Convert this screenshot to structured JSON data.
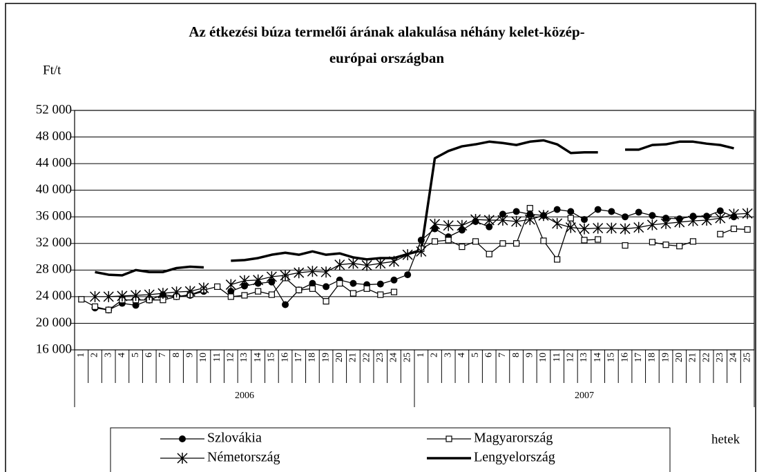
{
  "chart_data": {
    "type": "line",
    "title": [
      "Az étkezési búza termelői árának alakulása néhány kelet-közép-",
      "európai országban"
    ],
    "ylabel": "Ft/t",
    "xlabel": "hetek",
    "categories": [
      "1",
      "2",
      "3",
      "4",
      "5",
      "6",
      "7",
      "8",
      "9",
      "10",
      "11",
      "12",
      "13",
      "14",
      "15",
      "16",
      "17",
      "18",
      "19",
      "20",
      "21",
      "22",
      "23",
      "24",
      "25",
      "1",
      "2",
      "3",
      "4",
      "5",
      "6",
      "7",
      "8",
      "9",
      "10",
      "11",
      "12",
      "13",
      "14",
      "15",
      "16",
      "17",
      "18",
      "19",
      "20",
      "21",
      "22",
      "23",
      "24",
      "25"
    ],
    "groups": [
      "2006",
      "2007"
    ],
    "ylim": [
      16000,
      52000
    ],
    "yticks": [
      {
        "value": 16000,
        "label": "16 000"
      },
      {
        "value": 20000,
        "label": "20 000"
      },
      {
        "value": 24000,
        "label": "24 000"
      },
      {
        "value": 28000,
        "label": "28 000"
      },
      {
        "value": 32000,
        "label": "32 000"
      },
      {
        "value": 36000,
        "label": "36 000"
      },
      {
        "value": 40000,
        "label": "40 000"
      },
      {
        "value": 44000,
        "label": "44 000"
      },
      {
        "value": 48000,
        "label": "48 000"
      },
      {
        "value": 52000,
        "label": "52 000"
      }
    ],
    "grid": true,
    "series": [
      {
        "name": "Szlovákia",
        "color": "#000000",
        "marker": "circle",
        "line_width": 1.3,
        "values": [
          null,
          22300,
          22000,
          23000,
          22700,
          23500,
          24300,
          24000,
          24200,
          24800,
          null,
          24800,
          25600,
          26000,
          26200,
          22800,
          25000,
          26000,
          25500,
          26500,
          26000,
          25800,
          25900,
          26500,
          27300,
          32500,
          34200,
          33000,
          34000,
          35300,
          34500,
          36400,
          36800,
          36400,
          36200,
          37100,
          36800,
          35600,
          37100,
          36800,
          36000,
          36700,
          36200,
          35800,
          35700,
          36100,
          36100,
          36900,
          36000,
          null
        ]
      },
      {
        "name": "Magyarország",
        "color": "#000000",
        "marker": "square",
        "line_width": 1.3,
        "values": [
          23600,
          22500,
          22000,
          23500,
          23500,
          23500,
          23500,
          24000,
          24300,
          25000,
          25500,
          24000,
          24200,
          24800,
          24300,
          26800,
          25000,
          25200,
          23300,
          26000,
          24500,
          25200,
          24300,
          24700,
          null,
          31200,
          32300,
          32500,
          31500,
          32300,
          30400,
          32000,
          32000,
          37300,
          32400,
          29600,
          35800,
          32500,
          32600,
          null,
          31700,
          null,
          32200,
          31800,
          31600,
          32300,
          null,
          33400,
          34200,
          34100
        ]
      },
      {
        "name": "Németország",
        "color": "#000000",
        "marker": "star",
        "line_width": 1.3,
        "values": [
          null,
          24000,
          24000,
          24100,
          24200,
          24300,
          24500,
          24700,
          24800,
          25300,
          null,
          25800,
          26400,
          26500,
          27000,
          27200,
          27600,
          27800,
          27700,
          28800,
          29000,
          28700,
          29000,
          29300,
          30300,
          30800,
          34900,
          34700,
          34700,
          35600,
          35500,
          35500,
          35300,
          35600,
          36200,
          35000,
          34400,
          34200,
          34300,
          34300,
          34200,
          34400,
          34800,
          35000,
          35200,
          35400,
          35500,
          35800,
          36400,
          36500
        ]
      },
      {
        "name": "Lengyelország",
        "color": "#000000",
        "marker": "none",
        "line_width": 3.5,
        "values": [
          null,
          27700,
          27300,
          27200,
          28000,
          27700,
          27700,
          28300,
          28500,
          28400,
          null,
          29400,
          29500,
          29800,
          30300,
          30600,
          30300,
          30800,
          30300,
          30500,
          29900,
          29600,
          29800,
          29800,
          30400,
          31000,
          44800,
          45900,
          46600,
          46900,
          47300,
          47100,
          46800,
          47300,
          47500,
          46900,
          45600,
          45700,
          45700,
          null,
          46100,
          46100,
          46800,
          46900,
          47300,
          47300,
          47000,
          46800,
          46300,
          null
        ]
      }
    ]
  }
}
